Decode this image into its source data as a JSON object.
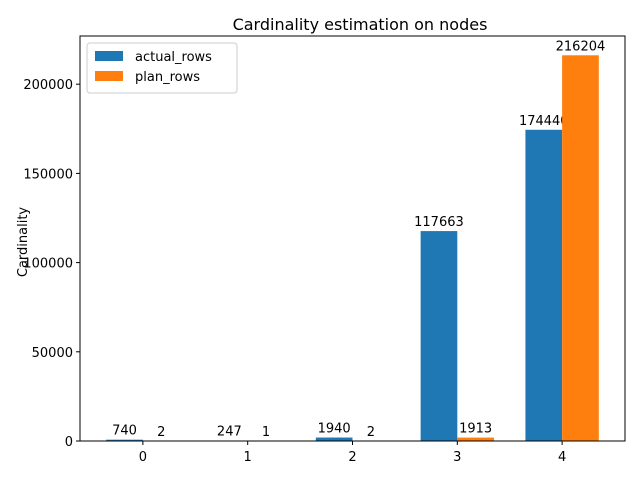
{
  "chart_data": {
    "type": "bar",
    "title": "Cardinality estimation on nodes",
    "xlabel": "",
    "ylabel": "Cardinality",
    "categories": [
      "0",
      "1",
      "2",
      "3",
      "4"
    ],
    "series": [
      {
        "name": "actual_rows",
        "color": "#1f77b4",
        "values": [
          740,
          247,
          1940,
          117663,
          174440
        ]
      },
      {
        "name": "plan_rows",
        "color": "#ff7f0e",
        "values": [
          2,
          1,
          2,
          1913,
          216204
        ]
      }
    ],
    "ylim": [
      0,
      227014
    ],
    "yticks": [
      0,
      50000,
      100000,
      150000,
      200000
    ],
    "legend": "top-left",
    "grid": false
  }
}
